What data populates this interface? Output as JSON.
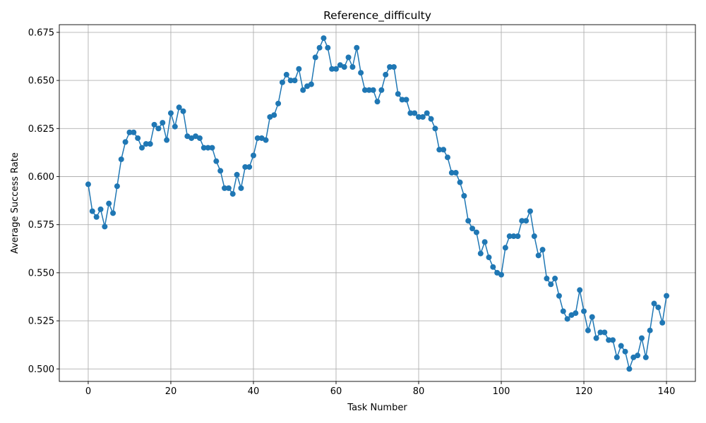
{
  "chart_data": {
    "type": "line",
    "title": "Reference_difficulty",
    "xlabel": "Task Number",
    "ylabel": "Average Success Rate",
    "xlim": [
      -7,
      147
    ],
    "ylim": [
      0.4935,
      0.679
    ],
    "xticks": [
      0,
      20,
      40,
      60,
      80,
      100,
      120,
      140
    ],
    "yticks": [
      0.5,
      0.525,
      0.55,
      0.575,
      0.6,
      0.625,
      0.65,
      0.675
    ],
    "ytick_labels": [
      "0.500",
      "0.525",
      "0.550",
      "0.575",
      "0.600",
      "0.625",
      "0.650",
      "0.675"
    ],
    "grid": true,
    "color": "#1f77b4",
    "marker": "circle",
    "series": [
      {
        "name": "Reference_difficulty",
        "x": [
          0,
          1,
          2,
          3,
          4,
          5,
          6,
          7,
          8,
          9,
          10,
          11,
          12,
          13,
          14,
          15,
          16,
          17,
          18,
          19,
          20,
          21,
          22,
          23,
          24,
          25,
          26,
          27,
          28,
          29,
          30,
          31,
          32,
          33,
          34,
          35,
          36,
          37,
          38,
          39,
          40,
          41,
          42,
          43,
          44,
          45,
          46,
          47,
          48,
          49,
          50,
          51,
          52,
          53,
          54,
          55,
          56,
          57,
          58,
          59,
          60,
          61,
          62,
          63,
          64,
          65,
          66,
          67,
          68,
          69,
          70,
          71,
          72,
          73,
          74,
          75,
          76,
          77,
          78,
          79,
          80,
          81,
          82,
          83,
          84,
          85,
          86,
          87,
          88,
          89,
          90,
          91,
          92,
          93,
          94,
          95,
          96,
          97,
          98,
          99,
          100,
          101,
          102,
          103,
          104,
          105,
          106,
          107,
          108,
          109,
          110,
          111,
          112,
          113,
          114,
          115,
          116,
          117,
          118,
          119,
          120,
          121,
          122,
          123,
          124,
          125,
          126,
          127,
          128,
          129,
          130,
          131,
          132,
          133,
          134,
          135,
          136,
          137,
          138,
          139,
          140
        ],
        "y": [
          0.596,
          0.582,
          0.579,
          0.583,
          0.574,
          0.586,
          0.581,
          0.595,
          0.609,
          0.618,
          0.623,
          0.623,
          0.62,
          0.615,
          0.617,
          0.617,
          0.627,
          0.625,
          0.628,
          0.619,
          0.633,
          0.626,
          0.636,
          0.634,
          0.621,
          0.62,
          0.621,
          0.62,
          0.615,
          0.615,
          0.615,
          0.608,
          0.603,
          0.594,
          0.594,
          0.591,
          0.601,
          0.594,
          0.605,
          0.605,
          0.611,
          0.62,
          0.62,
          0.619,
          0.631,
          0.632,
          0.638,
          0.649,
          0.653,
          0.65,
          0.65,
          0.656,
          0.645,
          0.647,
          0.648,
          0.662,
          0.667,
          0.672,
          0.667,
          0.656,
          0.656,
          0.658,
          0.657,
          0.662,
          0.657,
          0.667,
          0.654,
          0.645,
          0.645,
          0.645,
          0.639,
          0.645,
          0.653,
          0.657,
          0.657,
          0.643,
          0.64,
          0.64,
          0.633,
          0.633,
          0.631,
          0.631,
          0.633,
          0.63,
          0.625,
          0.614,
          0.614,
          0.61,
          0.602,
          0.602,
          0.597,
          0.59,
          0.577,
          0.573,
          0.571,
          0.56,
          0.566,
          0.558,
          0.553,
          0.55,
          0.549,
          0.563,
          0.569,
          0.569,
          0.569,
          0.577,
          0.577,
          0.582,
          0.569,
          0.559,
          0.562,
          0.547,
          0.544,
          0.547,
          0.538,
          0.53,
          0.526,
          0.528,
          0.529,
          0.541,
          0.53,
          0.52,
          0.527,
          0.516,
          0.519,
          0.519,
          0.515,
          0.515,
          0.506,
          0.512,
          0.509,
          0.5,
          0.506,
          0.507,
          0.516,
          0.506,
          0.52,
          0.534,
          0.532,
          0.524,
          0.538
        ]
      }
    ]
  }
}
